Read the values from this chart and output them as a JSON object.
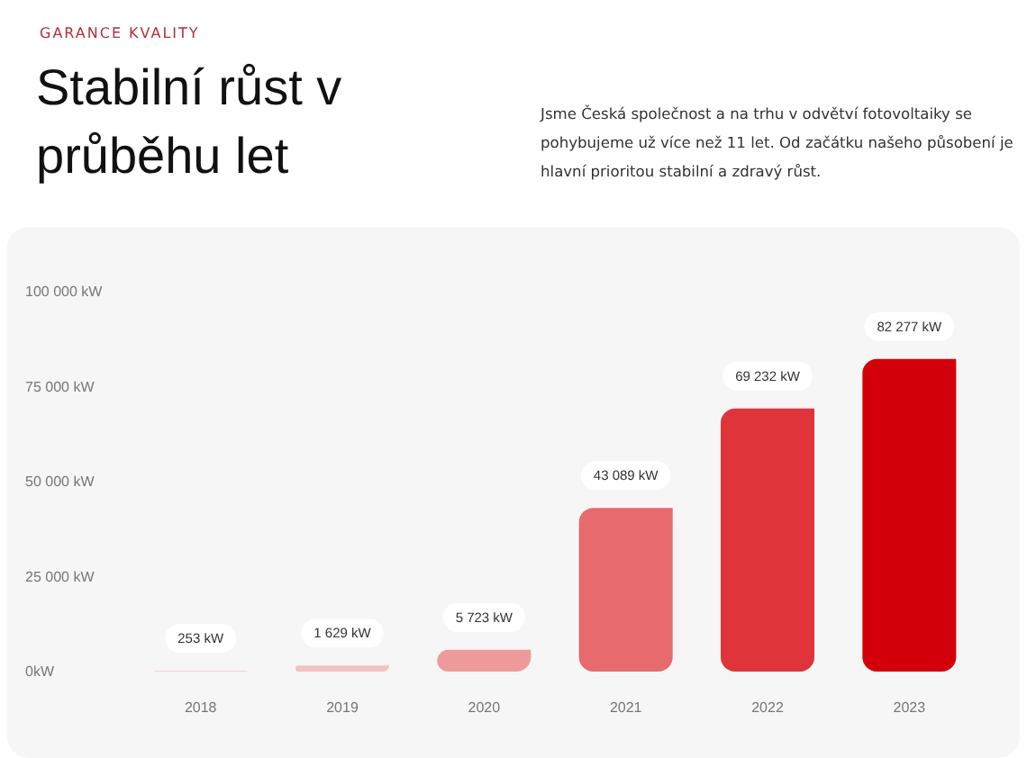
{
  "chart_data": {
    "type": "bar",
    "subtitle": "GARANCE KVALITY",
    "title": "Stabilní růst v průběhu let",
    "annotations": [
      "Jsme Česká společnost a na trhu v odvětví fotovoltaiky se pohybujeme už více než 11 let. Od začátku našeho působení je hlavní prioritou stabilní a zdravý růst."
    ],
    "categories": [
      "2018",
      "2019",
      "2020",
      "2021",
      "2022",
      "2023"
    ],
    "values": [
      253,
      1629,
      5723,
      43089,
      69232,
      82277
    ],
    "colors": [
      "#f4d4d6",
      "#f2c2c5",
      "#ee9a9d",
      "#e76a6e",
      "#df343a",
      "#d3000c"
    ],
    "value_labels": [
      "253 kW",
      "1 629 kW",
      "5 723 kW",
      "43 089 kW",
      "69 232 kW",
      "82 277 kW"
    ],
    "ylim": [
      0,
      100000
    ],
    "yticks": [
      {
        "value": 0,
        "label": "0kW"
      },
      {
        "value": 25000,
        "label": "25 000 kW"
      },
      {
        "value": 50000,
        "label": "50 000 kW"
      },
      {
        "value": 75000,
        "label": "75 000 kW"
      },
      {
        "value": 100000,
        "label": "100 000 kW"
      }
    ]
  }
}
